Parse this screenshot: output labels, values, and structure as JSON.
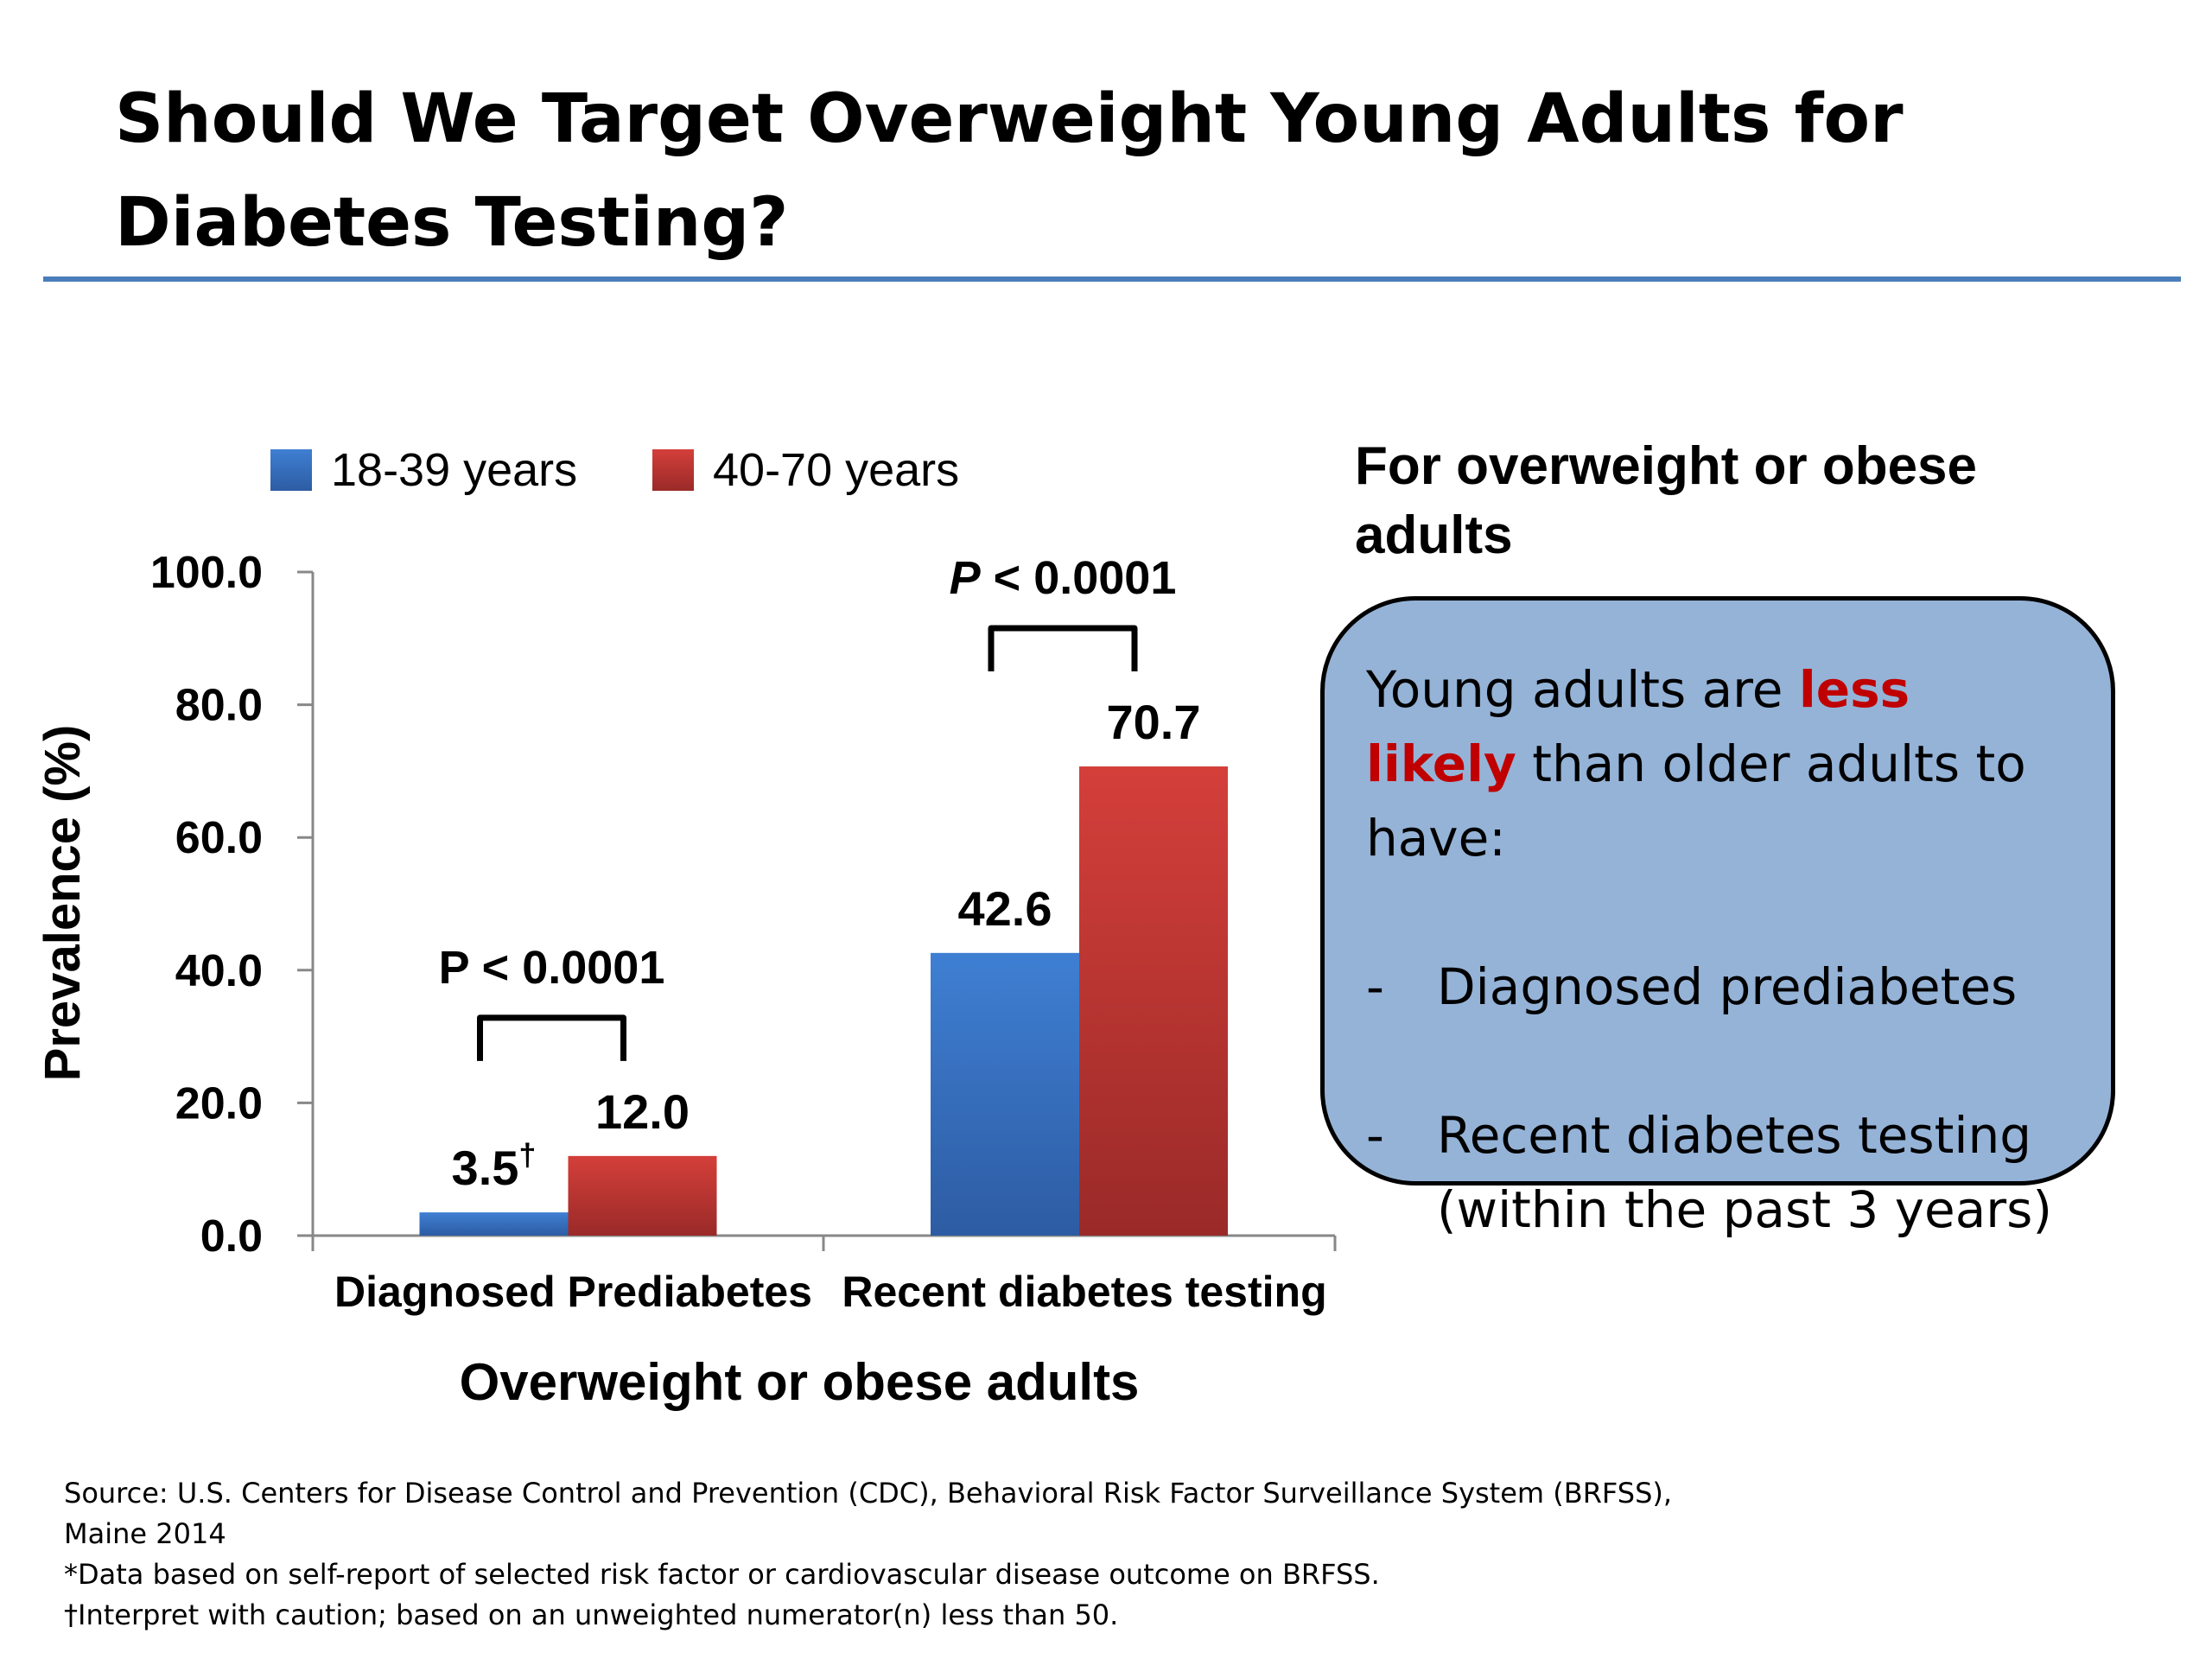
{
  "slide": {
    "title": "Should We Target Overweight Young Adults for Diabetes Testing?"
  },
  "colors": {
    "rule": "#4a7ebb",
    "series_1": "#3a6fc0",
    "series_2": "#c93a37",
    "callout_bg": "#95b3d7",
    "emphasis": "#c00000"
  },
  "chart_data": {
    "type": "bar",
    "title": "",
    "xlabel": "Overweight or obese adults",
    "ylabel": "Prevalence (%)",
    "ylim": [
      0,
      100
    ],
    "yticks": [
      "0.0",
      "20.0",
      "40.0",
      "60.0",
      "80.0",
      "100.0"
    ],
    "categories": [
      "Diagnosed Prediabetes",
      "Recent diabetes testing"
    ],
    "series": [
      {
        "name": "18-39 years",
        "values": [
          3.5,
          42.6
        ],
        "labels": [
          "3.5",
          "42.6"
        ],
        "label_marks": [
          "†",
          ""
        ]
      },
      {
        "name": "40-70 years",
        "values": [
          12.0,
          70.7
        ],
        "labels": [
          "12.0",
          "70.7"
        ],
        "label_marks": [
          "",
          ""
        ]
      }
    ],
    "legend": "top",
    "grid": false,
    "annotations": [
      {
        "category": "Diagnosed Prediabetes",
        "text_main": "P",
        "text_rest": " < 0.0001",
        "italic_p": false
      },
      {
        "category": "Recent diabetes testing",
        "text_main": "P",
        "text_rest": " < 0.0001",
        "italic_p": true
      }
    ]
  },
  "panel": {
    "heading": "For overweight or obese adults",
    "callout_text_1": "Young adults are ",
    "callout_emphasis": "less likely",
    "callout_text_2": " than older adults to have:",
    "bullet_marker": "-",
    "bullet_1": "Diagnosed prediabetes",
    "bullet_2": "Recent diabetes testing (within the past 3 years)"
  },
  "footer": {
    "source": "Source: U.S. Centers for Disease Control and Prevention (CDC), Behavioral Risk Factor Surveillance System (BRFSS),",
    "source_cont": "Maine 2014",
    "note_1": "*Data based on self-report of selected risk factor or cardiovascular disease outcome on BRFSS.",
    "note_2": "†Interpret with caution; based on an unweighted numerator(n) less than 50."
  }
}
